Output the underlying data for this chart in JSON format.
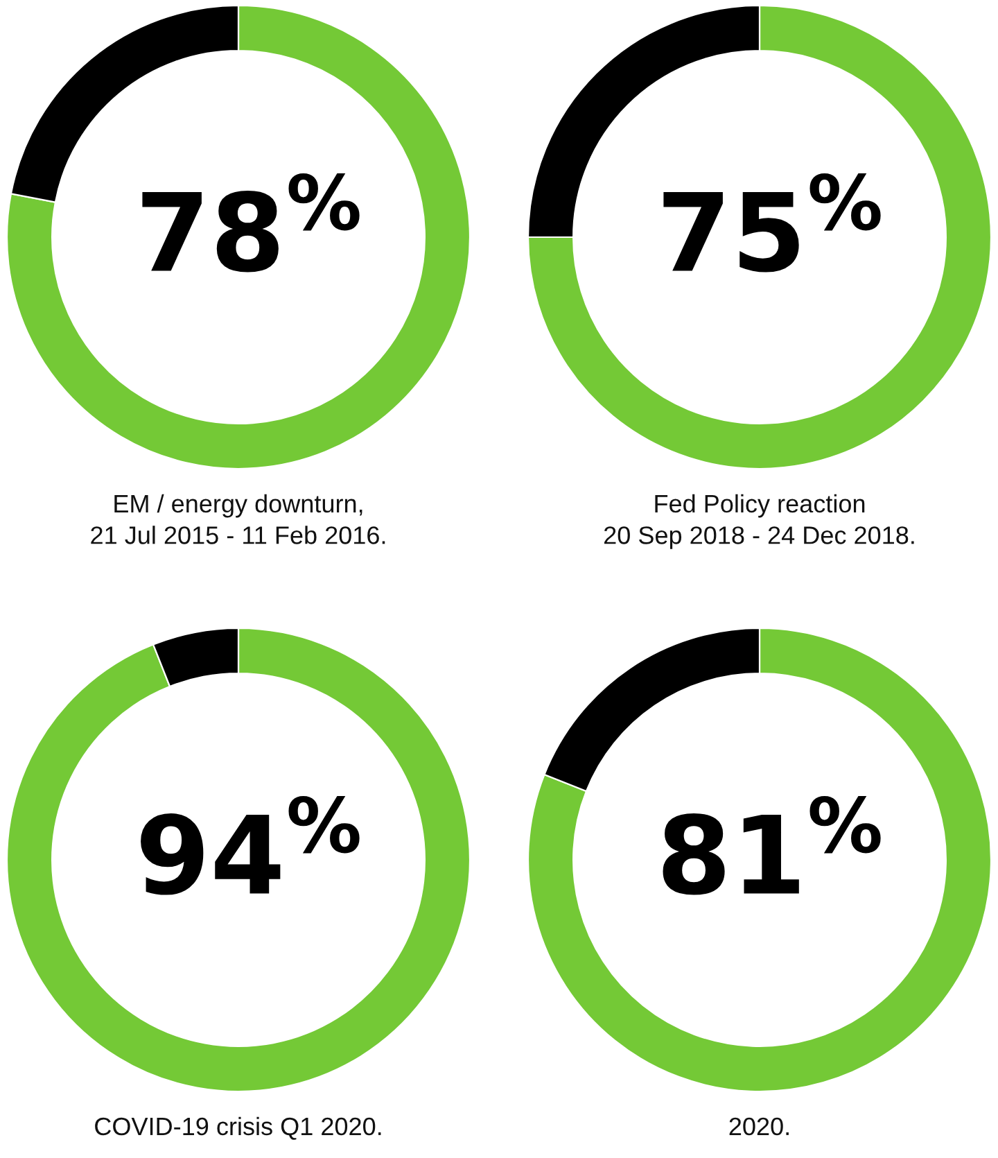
{
  "chart_data": [
    {
      "type": "donut",
      "title": "EM / energy downturn,\n21 Jul 2015 - 11 Feb 2016.",
      "categories": [
        null,
        null
      ],
      "values": [
        78,
        22
      ],
      "colors": [
        "#74c936",
        "#000000"
      ],
      "value_labels": [
        "78$^{%}$",
        null
      ]
    },
    {
      "type": "donut",
      "title": "Fed Policy reaction\n20 Sep 2018 - 24 Dec 2018.",
      "categories": [
        null,
        null
      ],
      "values": [
        75,
        25
      ],
      "colors": [
        "#74c936",
        "#000000"
      ],
      "value_labels": [
        "75$^{%}$",
        null
      ]
    },
    {
      "type": "donut",
      "title": "COVID-19 crisis Q1 2020.",
      "categories": [
        null,
        null
      ],
      "values": [
        94,
        6
      ],
      "colors": [
        "#74c936",
        "#000000"
      ],
      "value_labels": [
        "94$^{%}$",
        null
      ]
    },
    {
      "type": "donut",
      "title": "2020.",
      "categories": [
        null,
        null
      ],
      "values": [
        81,
        19
      ],
      "colors": [
        "#74c936",
        "#000000"
      ],
      "value_labels": [
        "81$^{%}$",
        null
      ]
    }
  ]
}
